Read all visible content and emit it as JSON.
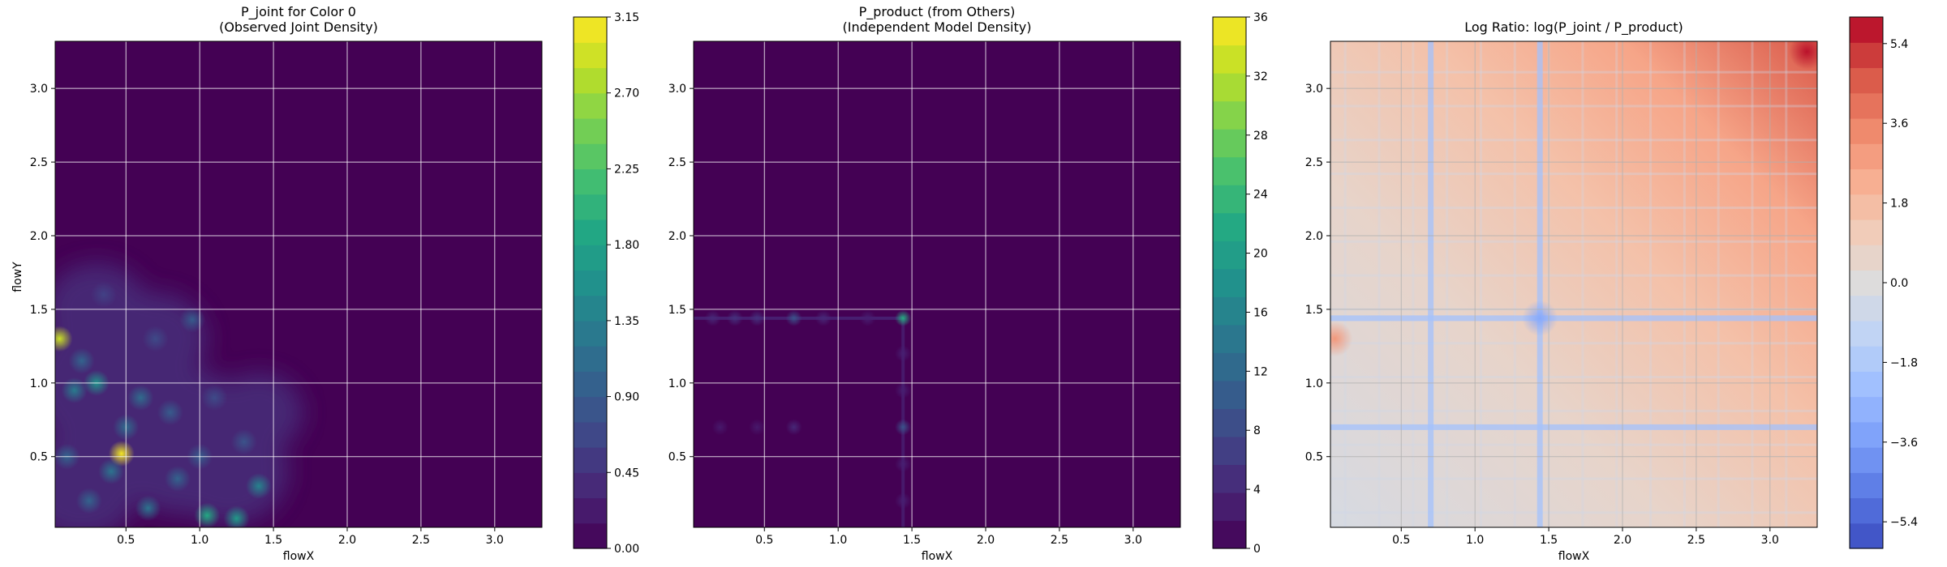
{
  "chart_data": [
    {
      "type": "heatmap",
      "title_lines": [
        "P_joint for Color 0",
        "(Observed Joint Density)"
      ],
      "xlabel": "flowX",
      "ylabel": "flowY",
      "xlim": [
        0.02,
        3.32
      ],
      "ylim": [
        0.02,
        3.32
      ],
      "xticks": [
        "0.5",
        "1.0",
        "1.5",
        "2.0",
        "2.5",
        "3.0"
      ],
      "yticks": [
        "0.5",
        "1.0",
        "1.5",
        "2.0",
        "2.5",
        "3.0"
      ],
      "grid": true,
      "colormap": "viridis",
      "colorbar": {
        "min": 0,
        "max": 3.15,
        "ticks": [
          "0.00",
          "0.45",
          "0.90",
          "1.35",
          "1.80",
          "2.25",
          "2.70",
          "3.15"
        ],
        "levels": 21
      },
      "background_value": 0.0,
      "hotspots": [
        {
          "x": 0.05,
          "y": 1.3,
          "value": 2.9
        },
        {
          "x": 0.47,
          "y": 0.52,
          "value": 3.1
        },
        {
          "x": 0.3,
          "y": 1.0,
          "value": 1.6
        },
        {
          "x": 0.15,
          "y": 0.95,
          "value": 1.3
        },
        {
          "x": 0.2,
          "y": 1.15,
          "value": 1.0
        },
        {
          "x": 0.6,
          "y": 0.9,
          "value": 1.1
        },
        {
          "x": 0.8,
          "y": 0.8,
          "value": 0.9
        },
        {
          "x": 0.95,
          "y": 1.43,
          "value": 0.9
        },
        {
          "x": 0.7,
          "y": 1.3,
          "value": 0.7
        },
        {
          "x": 1.05,
          "y": 0.1,
          "value": 1.9
        },
        {
          "x": 1.25,
          "y": 0.08,
          "value": 1.7
        },
        {
          "x": 1.4,
          "y": 0.3,
          "value": 1.4
        },
        {
          "x": 0.4,
          "y": 0.4,
          "value": 1.2
        },
        {
          "x": 0.1,
          "y": 0.5,
          "value": 1.0
        },
        {
          "x": 0.65,
          "y": 0.15,
          "value": 1.2
        },
        {
          "x": 0.85,
          "y": 0.35,
          "value": 1.0
        },
        {
          "x": 1.3,
          "y": 0.6,
          "value": 0.8
        },
        {
          "x": 1.1,
          "y": 0.9,
          "value": 0.7
        },
        {
          "x": 0.25,
          "y": 0.2,
          "value": 1.0
        },
        {
          "x": 0.5,
          "y": 0.7,
          "value": 1.1
        },
        {
          "x": 1.0,
          "y": 0.5,
          "value": 0.9
        },
        {
          "x": 0.35,
          "y": 1.6,
          "value": 0.6
        }
      ]
    },
    {
      "type": "heatmap",
      "title_lines": [
        "P_product (from Others)",
        "(Independent Model Density)"
      ],
      "xlabel": "flowX",
      "ylabel": "",
      "xlim": [
        0.02,
        3.32
      ],
      "ylim": [
        0.02,
        3.32
      ],
      "xticks": [
        "0.5",
        "1.0",
        "1.5",
        "2.0",
        "2.5",
        "3.0"
      ],
      "yticks": [
        "0.5",
        "1.0",
        "1.5",
        "2.0",
        "2.5",
        "3.0"
      ],
      "grid": true,
      "colormap": "viridis",
      "colorbar": {
        "min": 0,
        "max": 36,
        "ticks": [
          "0",
          "4",
          "8",
          "12",
          "16",
          "20",
          "24",
          "28",
          "32",
          "36"
        ],
        "levels": 19
      },
      "background_value": 0,
      "hotspots": [
        {
          "x": 1.44,
          "y": 1.44,
          "value": 22
        },
        {
          "x": 0.7,
          "y": 1.44,
          "value": 9
        },
        {
          "x": 1.44,
          "y": 0.7,
          "value": 9
        },
        {
          "x": 0.7,
          "y": 0.7,
          "value": 4
        },
        {
          "x": 0.45,
          "y": 1.44,
          "value": 5
        },
        {
          "x": 0.3,
          "y": 1.44,
          "value": 5
        },
        {
          "x": 0.15,
          "y": 1.44,
          "value": 4
        },
        {
          "x": 0.9,
          "y": 1.44,
          "value": 4
        },
        {
          "x": 1.2,
          "y": 1.44,
          "value": 3
        },
        {
          "x": 1.44,
          "y": 1.2,
          "value": 3
        },
        {
          "x": 1.44,
          "y": 0.95,
          "value": 3
        },
        {
          "x": 1.44,
          "y": 0.45,
          "value": 3
        },
        {
          "x": 1.44,
          "y": 0.2,
          "value": 3
        },
        {
          "x": 0.45,
          "y": 0.7,
          "value": 2.5
        },
        {
          "x": 0.2,
          "y": 0.7,
          "value": 2.5
        }
      ]
    },
    {
      "type": "heatmap",
      "title_lines": [
        "Log Ratio: log(P_joint / P_product)"
      ],
      "xlabel": "flowX",
      "ylabel": "",
      "xlim": [
        0.02,
        3.32
      ],
      "ylim": [
        0.02,
        3.32
      ],
      "xticks": [
        "0.5",
        "1.0",
        "1.5",
        "2.0",
        "2.5",
        "3.0"
      ],
      "yticks": [
        "0.5",
        "1.0",
        "1.5",
        "2.0",
        "2.5",
        "3.0"
      ],
      "grid": true,
      "colormap": "coolwarm",
      "colorbar": {
        "min": -6.0,
        "max": 6.0,
        "ticks": [
          "5.4",
          "3.6",
          "1.8",
          "0.0",
          "−1.8",
          "−3.6",
          "−5.4"
        ],
        "tick_values": [
          5.4,
          3.6,
          1.8,
          0.0,
          -1.8,
          -3.6,
          -5.4
        ],
        "levels": 21
      },
      "trend": "increases from near 0 at lower-left toward about 5.5 at upper-right; negative bands along x = 1.44, y = 1.44, x = 0.70 and y = 0.70",
      "negative_lines": [
        0.7,
        1.44
      ],
      "hotspots": [
        {
          "x": 3.25,
          "y": 3.25,
          "value": 5.8
        },
        {
          "x": 0.05,
          "y": 1.3,
          "value": 3.0
        },
        {
          "x": 1.44,
          "y": 1.44,
          "value": -3.2
        }
      ]
    }
  ]
}
